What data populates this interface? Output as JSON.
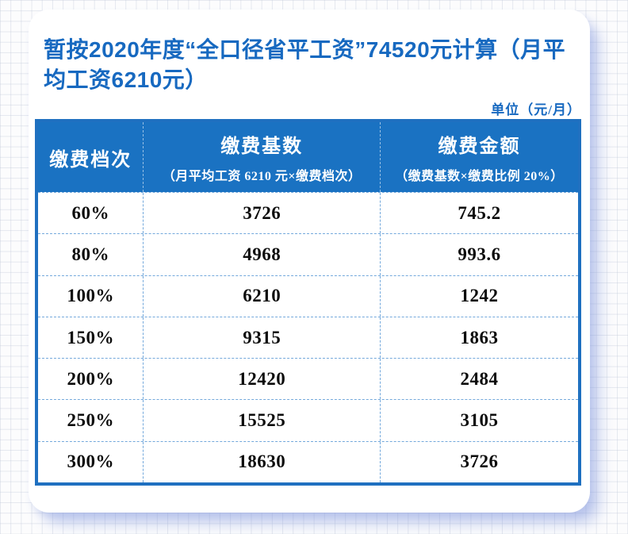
{
  "page": {
    "title": "暂按2020年度“全口径省平工资”74520元计算（月平均工资6210元）",
    "unit_label": "单位（元/月）"
  },
  "table": {
    "columns": [
      {
        "label": "缴费档次",
        "sublabel": ""
      },
      {
        "label": "缴费基数",
        "sublabel": "（月平均工资 6210 元×缴费档次）"
      },
      {
        "label": "缴费金额",
        "sublabel": "（缴费基数×缴费比例 20%）"
      }
    ],
    "rows": [
      {
        "tier": "60%",
        "base": "3726",
        "amount": "745.2"
      },
      {
        "tier": "80%",
        "base": "4968",
        "amount": "993.6"
      },
      {
        "tier": "100%",
        "base": "6210",
        "amount": "1242"
      },
      {
        "tier": "150%",
        "base": "9315",
        "amount": "1863"
      },
      {
        "tier": "200%",
        "base": "12420",
        "amount": "2484"
      },
      {
        "tier": "250%",
        "base": "15525",
        "amount": "3105"
      },
      {
        "tier": "300%",
        "base": "18630",
        "amount": "3726"
      }
    ]
  },
  "chart_data": {
    "type": "table",
    "title": "暂按2020年度“全口径省平工资”74520元计算（月平均工资6210元）",
    "unit": "元/月",
    "categories": [
      "60%",
      "80%",
      "100%",
      "150%",
      "200%",
      "250%",
      "300%"
    ],
    "series": [
      {
        "name": "缴费基数",
        "values": [
          3726,
          4968,
          6210,
          9315,
          12420,
          15525,
          18630
        ]
      },
      {
        "name": "缴费金额",
        "values": [
          745.2,
          993.6,
          1242,
          1863,
          2484,
          3105,
          3726
        ]
      }
    ]
  },
  "colors": {
    "accent_blue": "#1769c0",
    "header_bg": "#1a72c2",
    "border_blue": "#1f70c0",
    "dashed_line": "#74a9dc",
    "text_black": "#0c0c0c"
  }
}
